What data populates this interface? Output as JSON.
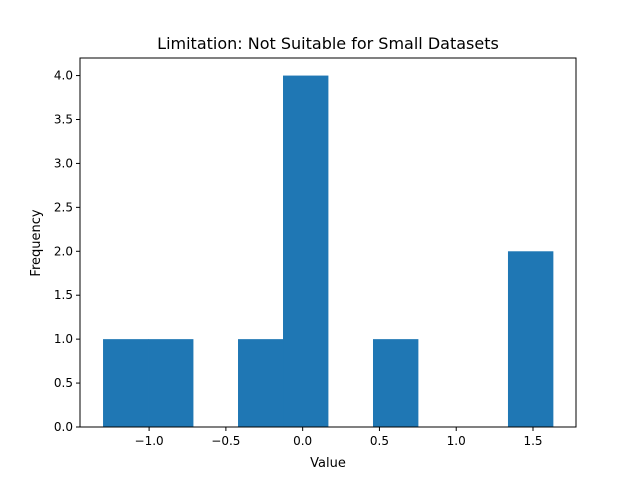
{
  "chart_data": {
    "type": "bar",
    "title": "Limitation: Not Suitable for Small Datasets",
    "xlabel": "Value",
    "ylabel": "Frequency",
    "bin_edges": [
      -1.3,
      -1.007,
      -0.714,
      -0.421,
      -0.128,
      0.165,
      0.458,
      0.751,
      1.044,
      1.337,
      1.63
    ],
    "values": [
      1,
      1,
      0,
      1,
      4,
      0,
      1,
      0,
      0,
      2
    ],
    "xlim": [
      -1.45,
      1.78
    ],
    "ylim": [
      0,
      4.2
    ],
    "xticks": [
      -1.0,
      -0.5,
      0.0,
      0.5,
      1.0,
      1.5
    ],
    "xtick_labels": [
      "−1.0",
      "−0.5",
      "0.0",
      "0.5",
      "1.0",
      "1.5"
    ],
    "yticks": [
      0.0,
      0.5,
      1.0,
      1.5,
      2.0,
      2.5,
      3.0,
      3.5,
      4.0
    ],
    "ytick_labels": [
      "0.0",
      "0.5",
      "1.0",
      "1.5",
      "2.0",
      "2.5",
      "3.0",
      "3.5",
      "4.0"
    ],
    "bar_color": "#1f77b4",
    "grid": false,
    "legend": "none"
  }
}
